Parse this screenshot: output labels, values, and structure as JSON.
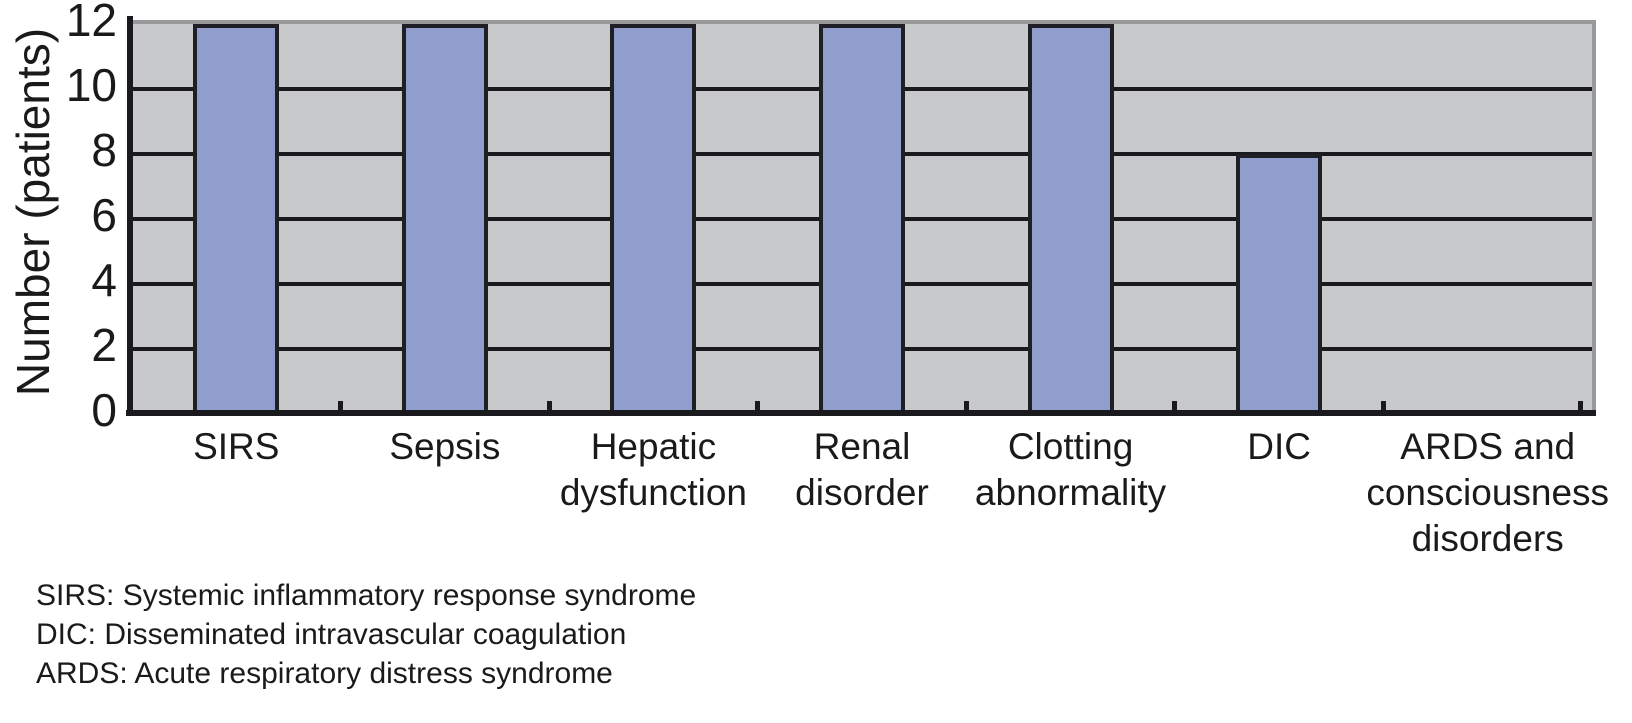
{
  "chart_data": {
    "type": "bar",
    "title": "",
    "xlabel": "",
    "ylabel": "Number (patients)",
    "categories": [
      "SIRS",
      "Sepsis",
      "Hepatic\ndysfunction",
      "Renal\ndisorder",
      "Clotting\nabnormality",
      "DIC",
      "ARDS and\nconsciousness\ndisorders"
    ],
    "values": [
      12,
      12,
      12,
      12,
      12,
      8,
      0
    ],
    "ylim": [
      0,
      12
    ],
    "yticks": [
      0,
      2,
      4,
      6,
      8,
      10,
      12
    ],
    "grid": "horizontal",
    "legend_position": "none",
    "bar_color": "#8f9ecd",
    "bar_border_color": "#211f26",
    "plot_background_color": "#c8c9cb",
    "gridline_color": "#1a1a1e",
    "outer_border_color": "#98999b"
  },
  "footnotes": [
    "SIRS: Systemic inflammatory response syndrome",
    "DIC: Disseminated intravascular coagulation",
    "ARDS: Acute respiratory distress syndrome"
  ]
}
